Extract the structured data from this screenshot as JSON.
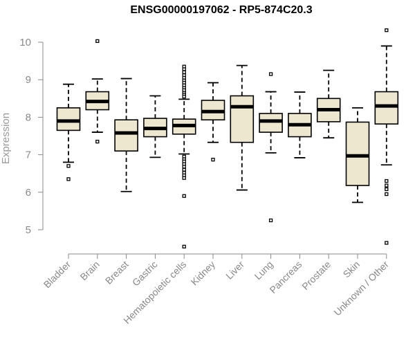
{
  "chart_data": {
    "type": "boxplot",
    "title": "ENSG00000197062 - RP5-874C20.3",
    "xlabel": "",
    "ylabel": "Expression",
    "ylim": [
      4.4,
      10.6
    ],
    "yticks": [
      5,
      6,
      7,
      8,
      9,
      10
    ],
    "box_fill": "#ede7cf",
    "categories": [
      "Bladder",
      "Brain",
      "Breast",
      "Gastric",
      "Hematopoietic cells",
      "Kidney",
      "Liver",
      "Lung",
      "Pancreas",
      "Prostate",
      "Skin",
      "Unknown / Other"
    ],
    "boxes": [
      {
        "whisker_low": 6.8,
        "q1": 7.65,
        "median": 7.9,
        "q3": 8.25,
        "whisker_high": 8.88,
        "outliers": [
          6.7,
          6.35
        ]
      },
      {
        "whisker_low": 7.6,
        "q1": 8.2,
        "median": 8.42,
        "q3": 8.68,
        "whisker_high": 9.02,
        "outliers": [
          10.03,
          7.35
        ]
      },
      {
        "whisker_low": 6.02,
        "q1": 7.1,
        "median": 7.58,
        "q3": 7.93,
        "whisker_high": 9.03,
        "outliers": []
      },
      {
        "whisker_low": 6.93,
        "q1": 7.48,
        "median": 7.7,
        "q3": 7.97,
        "whisker_high": 8.57,
        "outliers": []
      },
      {
        "whisker_low": 7.02,
        "q1": 7.55,
        "median": 7.78,
        "q3": 7.95,
        "whisker_high": 8.48,
        "outliers": [
          9.35,
          9.28,
          9.2,
          9.12,
          9.05,
          8.98,
          8.92,
          8.85,
          8.78,
          8.72,
          8.65,
          8.6,
          8.55,
          6.95,
          6.88,
          6.82,
          6.75,
          6.68,
          6.6,
          6.52,
          6.45,
          6.38,
          5.9,
          4.55
        ]
      },
      {
        "whisker_low": 7.33,
        "q1": 7.93,
        "median": 8.15,
        "q3": 8.45,
        "whisker_high": 8.92,
        "outliers": [
          6.87
        ]
      },
      {
        "whisker_low": 6.06,
        "q1": 7.33,
        "median": 8.28,
        "q3": 8.57,
        "whisker_high": 9.38,
        "outliers": []
      },
      {
        "whisker_low": 7.05,
        "q1": 7.6,
        "median": 7.9,
        "q3": 8.1,
        "whisker_high": 8.68,
        "outliers": [
          9.15,
          5.25
        ]
      },
      {
        "whisker_low": 6.92,
        "q1": 7.48,
        "median": 7.8,
        "q3": 8.1,
        "whisker_high": 8.67,
        "outliers": []
      },
      {
        "whisker_low": 7.45,
        "q1": 7.88,
        "median": 8.2,
        "q3": 8.5,
        "whisker_high": 9.25,
        "outliers": []
      },
      {
        "whisker_low": 5.73,
        "q1": 6.18,
        "median": 6.97,
        "q3": 7.87,
        "whisker_high": 8.25,
        "outliers": []
      },
      {
        "whisker_low": 6.73,
        "q1": 7.82,
        "median": 8.3,
        "q3": 8.68,
        "whisker_high": 9.9,
        "outliers": [
          10.32,
          6.3,
          6.18,
          6.08,
          5.95,
          4.65
        ]
      }
    ]
  }
}
